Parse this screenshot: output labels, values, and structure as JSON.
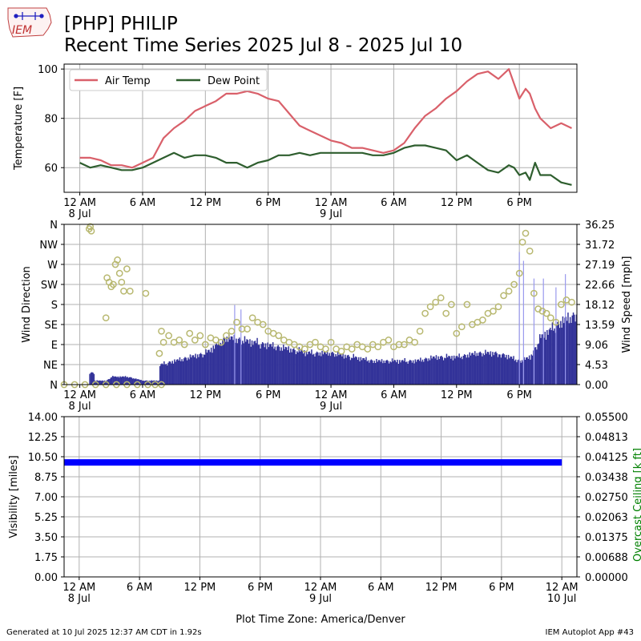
{
  "title_line1": "[PHP] PHILIP",
  "title_line2": "Recent Time Series 2025 Jul 8 - 2025 Jul 10",
  "logo_text": "IEM",
  "footer_left": "Generated at 10 Jul 2025 12:37 AM CDT in 1.92s",
  "footer_right": "IEM Autoplot App #43",
  "colors": {
    "air_temp": "#d9606a",
    "dew_point": "#2e5e2e",
    "wind_speed": "#333399",
    "wind_gust": "#9999ee",
    "wind_dir": "#b8b870",
    "visibility": "#0000ff",
    "ceiling_axis": "#008000",
    "grid": "#b0b0b0"
  },
  "chart_data": [
    {
      "type": "line",
      "ylabel": "Temperature [F]",
      "yticks": [
        60,
        80,
        100
      ],
      "ylim": [
        50,
        102
      ],
      "xlim_hours": [
        -1.5,
        47.5
      ],
      "x_tick_labels": [
        {
          "h": 0,
          "label": "12 AM",
          "date": "8 Jul"
        },
        {
          "h": 6,
          "label": "6 AM"
        },
        {
          "h": 12,
          "label": "12 PM"
        },
        {
          "h": 18,
          "label": "6 PM"
        },
        {
          "h": 24,
          "label": "12 AM",
          "date": "9 Jul"
        },
        {
          "h": 30,
          "label": "6 AM"
        },
        {
          "h": 36,
          "label": "12 PM"
        },
        {
          "h": 42,
          "label": "6 PM"
        }
      ],
      "legend": "top-left",
      "grid": true,
      "series": [
        {
          "name": "Air Temp",
          "x": [
            0,
            1,
            2,
            3,
            4,
            5,
            6,
            7,
            8,
            9,
            10,
            11,
            12,
            13,
            14,
            15,
            16,
            17,
            18,
            19,
            20,
            21,
            22,
            23,
            24,
            25,
            26,
            27,
            28,
            29,
            30,
            31,
            32,
            33,
            34,
            35,
            36,
            37,
            38,
            39,
            40,
            41,
            42,
            42.6,
            43,
            43.5,
            44,
            45,
            46,
            47
          ],
          "y": [
            64,
            64,
            63,
            61,
            61,
            60,
            62,
            64,
            72,
            76,
            79,
            83,
            85,
            87,
            90,
            90,
            91,
            90,
            88,
            87,
            82,
            77,
            75,
            73,
            71,
            70,
            68,
            68,
            67,
            66,
            67,
            70,
            76,
            81,
            84,
            88,
            91,
            95,
            98,
            99,
            96,
            100,
            88,
            92,
            90,
            84,
            80,
            76,
            78,
            76
          ]
        },
        {
          "name": "Dew Point",
          "x": [
            0,
            1,
            2,
            3,
            4,
            5,
            6,
            7,
            8,
            9,
            10,
            11,
            12,
            13,
            14,
            15,
            16,
            17,
            18,
            19,
            20,
            21,
            22,
            23,
            24,
            25,
            26,
            27,
            28,
            29,
            30,
            31,
            32,
            33,
            34,
            35,
            36,
            37,
            38,
            39,
            40,
            41,
            41.5,
            42,
            42.6,
            43,
            43.5,
            44,
            45,
            46,
            47
          ],
          "y": [
            62,
            60,
            61,
            60,
            59,
            59,
            60,
            62,
            64,
            66,
            64,
            65,
            65,
            64,
            62,
            62,
            60,
            62,
            63,
            65,
            65,
            66,
            65,
            66,
            66,
            66,
            66,
            66,
            65,
            65,
            66,
            68,
            69,
            69,
            68,
            67,
            63,
            65,
            62,
            59,
            58,
            61,
            60,
            57,
            58,
            55,
            62,
            57,
            57,
            54,
            53
          ]
        }
      ]
    },
    {
      "type": "bar+scatter",
      "ylabel_left": "Wind Direction",
      "ylabel_right": "Wind Speed [mph]",
      "dir_ticks": [
        "N",
        "NE",
        "E",
        "SE",
        "S",
        "SW",
        "W",
        "NW",
        "N"
      ],
      "dir_range": [
        0,
        360
      ],
      "speed_ticks": [
        "0.00",
        "4.53",
        "9.06",
        "13.59",
        "18.12",
        "22.66",
        "27.19",
        "31.72",
        "36.25"
      ],
      "speed_range": [
        0,
        36.25
      ],
      "xlim_hours": [
        -1.5,
        47.5
      ],
      "x_tick_labels": [
        {
          "h": 0,
          "label": "12 AM",
          "date": "8 Jul"
        },
        {
          "h": 6,
          "label": "6 AM"
        },
        {
          "h": 12,
          "label": "12 PM"
        },
        {
          "h": 18,
          "label": "6 PM"
        },
        {
          "h": 24,
          "label": "12 AM",
          "date": "9 Jul"
        },
        {
          "h": 30,
          "label": "6 AM"
        },
        {
          "h": 36,
          "label": "12 PM"
        },
        {
          "h": 42,
          "label": "6 PM"
        }
      ],
      "grid": true,
      "wind_speed_profile": {
        "x": [
          -1.5,
          0.8,
          0.9,
          1.3,
          1.4,
          2.5,
          3.0,
          4.5,
          6.0,
          7.5,
          7.6,
          9.0,
          10.5,
          12.0,
          13.0,
          14.0,
          16.0,
          18.0,
          20.0,
          22.0,
          24.0,
          26.0,
          28.0,
          30.0,
          32.0,
          34.0,
          36.0,
          38.0,
          40.0,
          41.0,
          42.0,
          43.0,
          44.0,
          45.0,
          46.0,
          47.5
        ],
        "y": [
          0,
          0,
          3,
          3,
          1,
          1,
          2,
          2,
          1,
          1,
          5,
          6,
          7,
          8,
          10,
          12,
          11,
          10,
          9,
          8,
          8,
          7,
          6,
          6,
          6,
          7,
          7,
          8,
          8,
          7,
          6,
          7,
          12,
          14,
          16,
          18
        ]
      },
      "wind_gust_spikes": [
        {
          "x": 14.8,
          "y": 18
        },
        {
          "x": 15.4,
          "y": 17
        },
        {
          "x": 42.0,
          "y": 30
        },
        {
          "x": 42.4,
          "y": 28
        },
        {
          "x": 43.4,
          "y": 24
        },
        {
          "x": 44.3,
          "y": 24
        },
        {
          "x": 45.5,
          "y": 22
        },
        {
          "x": 46.4,
          "y": 25
        }
      ],
      "wind_direction_points": {
        "x": [
          -1.5,
          -0.5,
          0.5,
          1.5,
          2.5,
          3.5,
          4.5,
          5.5,
          6.5,
          7.2,
          7.8,
          0.9,
          1.0,
          1.1,
          2.6,
          2.8,
          3.0,
          3.2,
          3.4,
          3.6,
          3.8,
          4.0,
          4.2,
          4.5,
          4.8,
          2.5,
          6.3,
          7.6,
          7.8,
          8.0,
          8.5,
          9.0,
          9.5,
          10.0,
          10.5,
          11.0,
          11.5,
          12.0,
          12.5,
          13.0,
          13.5,
          14.0,
          14.5,
          15.0,
          15.5,
          16.0,
          16.5,
          17.0,
          17.5,
          18.0,
          18.5,
          19.0,
          19.5,
          20.0,
          20.5,
          21.0,
          21.5,
          22.0,
          22.5,
          23.0,
          23.5,
          24.0,
          24.5,
          25.0,
          25.5,
          26.0,
          26.5,
          27.0,
          27.5,
          28.0,
          28.5,
          29.0,
          29.5,
          30.0,
          30.5,
          31.0,
          31.5,
          32.0,
          32.5,
          33.0,
          33.5,
          34.0,
          34.5,
          35.0,
          35.5,
          36.0,
          36.5,
          37.0,
          37.5,
          38.0,
          38.5,
          39.0,
          39.5,
          40.0,
          40.5,
          41.0,
          41.5,
          42.0,
          42.3,
          42.6,
          43.0,
          43.4,
          43.8,
          44.2,
          44.6,
          45.0,
          45.5,
          46.0,
          46.5,
          47.0
        ],
        "y": [
          0,
          0,
          0,
          0,
          0,
          0,
          0,
          0,
          0,
          0,
          0,
          350,
          355,
          345,
          240,
          230,
          220,
          225,
          270,
          280,
          250,
          230,
          210,
          260,
          210,
          150,
          205,
          70,
          120,
          95,
          110,
          95,
          100,
          90,
          115,
          100,
          110,
          90,
          105,
          100,
          95,
          110,
          120,
          140,
          125,
          125,
          150,
          140,
          135,
          120,
          115,
          110,
          100,
          95,
          90,
          85,
          80,
          90,
          95,
          85,
          80,
          95,
          80,
          75,
          85,
          80,
          90,
          85,
          80,
          90,
          85,
          95,
          100,
          85,
          90,
          90,
          100,
          95,
          120,
          160,
          175,
          185,
          195,
          160,
          180,
          115,
          130,
          180,
          135,
          140,
          145,
          160,
          165,
          175,
          200,
          210,
          225,
          250,
          320,
          340,
          300,
          205,
          170,
          165,
          160,
          150,
          140,
          180,
          190,
          185
        ]
      }
    },
    {
      "type": "line",
      "ylabel_left": "Visibility [miles]",
      "ylabel_right": "Overcast Ceiling [k ft]",
      "vis_ticks": [
        "0.00",
        "1.75",
        "3.50",
        "5.25",
        "7.00",
        "8.75",
        "10.50",
        "12.25",
        "14.00"
      ],
      "vis_range": [
        0,
        14
      ],
      "ceiling_ticks": [
        "0.00000",
        "0.00688",
        "0.01375",
        "0.02063",
        "0.02750",
        "0.03438",
        "0.04125",
        "0.04813",
        "0.05500"
      ],
      "ceiling_range": [
        0,
        0.055
      ],
      "xlim_hours": [
        -1.5,
        49.5
      ],
      "x_tick_labels": [
        {
          "h": 0,
          "label": "12 AM",
          "date": "8 Jul"
        },
        {
          "h": 6,
          "label": "6 AM"
        },
        {
          "h": 12,
          "label": "12 PM"
        },
        {
          "h": 18,
          "label": "6 PM"
        },
        {
          "h": 24,
          "label": "12 AM",
          "date": "9 Jul"
        },
        {
          "h": 30,
          "label": "6 AM"
        },
        {
          "h": 36,
          "label": "12 PM"
        },
        {
          "h": 42,
          "label": "6 PM"
        },
        {
          "h": 48,
          "label": "12 AM",
          "date": "10 Jul"
        }
      ],
      "xlabel": "Plot Time Zone: America/Denver",
      "grid": true,
      "visibility": {
        "x_start": -1.5,
        "x_end": 48.0,
        "value": 10.0
      }
    }
  ]
}
